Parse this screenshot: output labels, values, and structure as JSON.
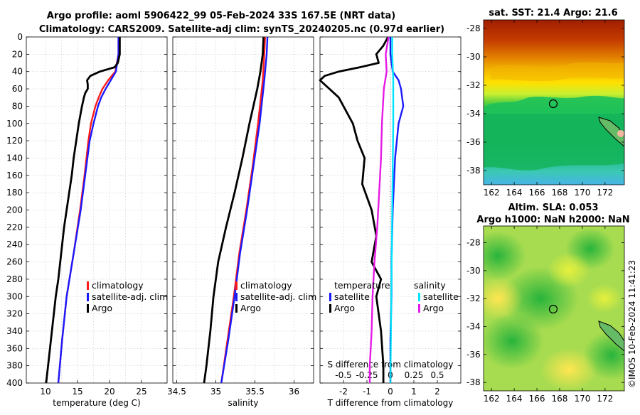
{
  "header": {
    "title_line1": "Argo profile: aoml 5906422_99 05-Feb-2024 33S 167.5E (NRT data)",
    "title_line2": "Climatology: CARS2009. Satellite-adj clim: synTS_20240205.nc (0.97d earlier)"
  },
  "depth_ticks": [
    "0",
    "20",
    "40",
    "60",
    "80",
    "100",
    "120",
    "140",
    "160",
    "180",
    "200",
    "220",
    "240",
    "260",
    "280",
    "300",
    "320",
    "340",
    "360",
    "380",
    "400"
  ],
  "panels": {
    "temperature": {
      "xlabel": "temperature (deg C)",
      "ticks": [
        "10",
        "15",
        "20",
        "25"
      ],
      "legend": [
        "climatology",
        "satellite-adj. clim",
        "Argo"
      ]
    },
    "salinity": {
      "xlabel": "salinity",
      "ticks": [
        "34.5",
        "35",
        "35.5",
        "36"
      ],
      "legend": [
        "climatology",
        "satellite-adj. clim",
        "Argo"
      ]
    },
    "difference": {
      "xlabel": "T difference from climatology",
      "ticks": [
        "-2",
        "-1",
        "0",
        "1",
        "2"
      ],
      "top_label": "S difference from climatology",
      "top_ticks": [
        "-0.5",
        "-0.25",
        "0",
        "0.25",
        "0.5"
      ],
      "legend_t_title": "temperature",
      "legend_s_title": "salinity",
      "legend_t": [
        "satellite",
        "Argo"
      ],
      "legend_s": [
        "satellite",
        "Argo"
      ]
    }
  },
  "maps": {
    "sst_title": "sat. SST: 21.4 Argo: 21.6",
    "sla_title_line1": "Altim. SLA: 0.053",
    "sla_title_line2": "Argo h1000: NaN h2000: NaN",
    "lat_ticks": [
      "-28",
      "-30",
      "-32",
      "-34",
      "-36",
      "-38"
    ],
    "lon_ticks": [
      "162",
      "164",
      "166",
      "168",
      "170",
      "172"
    ]
  },
  "credit": "©IMOS 10-Feb-2024 11:41:23",
  "colors": {
    "climatology": "#ff1a1a",
    "satellite": "#1a1aff",
    "argo": "#000000",
    "sal_satellite": "#00e5ff",
    "sal_argo": "#e61ae6"
  },
  "chart_data": [
    {
      "type": "line",
      "title": "temperature profile",
      "xlabel": "temperature (deg C)",
      "ylabel": "depth",
      "xlim": [
        7,
        29
      ],
      "ylim": [
        0,
        400
      ],
      "series": [
        {
          "name": "climatology",
          "depth": [
            0,
            20,
            40,
            50,
            60,
            70,
            80,
            100,
            120,
            160,
            200,
            250,
            300,
            350,
            400
          ],
          "values": [
            21.4,
            21.4,
            20.9,
            19.8,
            18.9,
            18.3,
            17.8,
            17.1,
            16.7,
            16.1,
            15.4,
            14.4,
            13.3,
            12.6,
            12.0
          ]
        },
        {
          "name": "satellite-adj. clim",
          "depth": [
            0,
            20,
            40,
            50,
            60,
            70,
            80,
            100,
            120,
            160,
            200,
            250,
            300,
            350,
            400
          ],
          "values": [
            21.4,
            21.4,
            21.0,
            20.2,
            19.4,
            18.7,
            18.2,
            17.5,
            16.9,
            16.2,
            15.5,
            14.4,
            13.3,
            12.6,
            12.0
          ]
        },
        {
          "name": "Argo",
          "depth": [
            0,
            20,
            30,
            35,
            40,
            45,
            50,
            55,
            60,
            65,
            70,
            80,
            100,
            120,
            140,
            160,
            180,
            200,
            220,
            240,
            260,
            280,
            300,
            320,
            340,
            360,
            380,
            400
          ],
          "values": [
            21.6,
            21.6,
            21.3,
            20.8,
            18.5,
            17.0,
            16.5,
            16.6,
            16.6,
            16.2,
            16.0,
            15.7,
            15.2,
            14.8,
            14.4,
            14.1,
            13.7,
            13.3,
            12.9,
            12.6,
            12.3,
            12.0,
            11.6,
            11.3,
            11.0,
            10.7,
            10.4,
            10.1
          ]
        }
      ]
    },
    {
      "type": "line",
      "title": "salinity profile",
      "xlabel": "salinity",
      "ylabel": "depth",
      "xlim": [
        34.45,
        36.25
      ],
      "ylim": [
        0,
        400
      ],
      "series": [
        {
          "name": "climatology",
          "depth": [
            0,
            20,
            50,
            100,
            150,
            200,
            250,
            300,
            350,
            400
          ],
          "values": [
            35.63,
            35.62,
            35.6,
            35.54,
            35.47,
            35.39,
            35.3,
            35.23,
            35.15,
            35.07
          ]
        },
        {
          "name": "satellite-adj. clim",
          "depth": [
            0,
            20,
            50,
            100,
            150,
            200,
            250,
            300,
            350,
            400
          ],
          "values": [
            35.66,
            35.65,
            35.62,
            35.56,
            35.48,
            35.4,
            35.31,
            35.24,
            35.16,
            35.07
          ]
        },
        {
          "name": "Argo",
          "depth": [
            0,
            20,
            40,
            60,
            80,
            100,
            140,
            180,
            220,
            260,
            300,
            340,
            380,
            400
          ],
          "values": [
            35.61,
            35.6,
            35.57,
            35.53,
            35.48,
            35.43,
            35.34,
            35.24,
            35.13,
            35.03,
            34.97,
            34.93,
            34.88,
            34.85
          ]
        }
      ]
    },
    {
      "type": "line",
      "title": "difference from climatology",
      "xlabel": "T difference from climatology",
      "ylabel": "depth",
      "xlim": [
        -3,
        3
      ],
      "ylim": [
        0,
        400
      ],
      "top_xlabel": "S difference from climatology",
      "top_xlim": [
        -0.75,
        0.75
      ],
      "series": [
        {
          "name": "temperature satellite",
          "depth": [
            0,
            20,
            40,
            50,
            60,
            80,
            100,
            140,
            200,
            260,
            300,
            350,
            400
          ],
          "values": [
            0.0,
            0.0,
            0.1,
            0.35,
            0.45,
            0.55,
            0.35,
            0.2,
            0.1,
            0.05,
            0.05,
            0.0,
            0.0
          ]
        },
        {
          "name": "temperature Argo",
          "depth": [
            0,
            10,
            20,
            30,
            35,
            40,
            45,
            50,
            55,
            60,
            70,
            80,
            100,
            120,
            140,
            170,
            200,
            230,
            260,
            280,
            300,
            340,
            380,
            400
          ],
          "values": [
            -0.1,
            -0.3,
            -0.6,
            -0.5,
            -1.3,
            -2.2,
            -2.8,
            -3.0,
            -2.8,
            -2.6,
            -2.2,
            -2.0,
            -1.6,
            -1.4,
            -1.1,
            -1.2,
            -0.8,
            -0.6,
            -0.8,
            -0.4,
            -0.6,
            -0.4,
            -0.3,
            -0.3
          ]
        },
        {
          "name": "salinity satellite",
          "depth": [
            0,
            20,
            50,
            100,
            200,
            300,
            400
          ],
          "values": [
            0.02,
            0.02,
            0.03,
            0.03,
            0.02,
            0.01,
            0.0
          ]
        },
        {
          "name": "salinity Argo",
          "depth": [
            0,
            20,
            40,
            60,
            100,
            140,
            180,
            220,
            260,
            300,
            340,
            380,
            400
          ],
          "values": [
            -0.02,
            -0.05,
            -0.04,
            -0.07,
            -0.09,
            -0.1,
            -0.12,
            -0.14,
            -0.17,
            -0.19,
            -0.2,
            -0.22,
            -0.22
          ]
        }
      ]
    }
  ]
}
